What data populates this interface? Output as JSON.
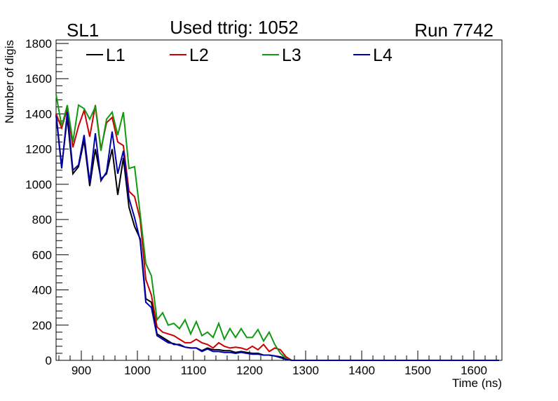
{
  "chart_data": {
    "type": "line",
    "title_left": "SL1",
    "title": "Used ttrig: 1052",
    "title_right": "Run 7742",
    "xlabel": "Time (ns)",
    "ylabel": "Number of digis",
    "xlim": [
      855,
      1650
    ],
    "ylim": [
      0,
      1820
    ],
    "x_ticks": [
      900,
      1000,
      1100,
      1200,
      1300,
      1400,
      1500,
      1600,
      1700
    ],
    "y_ticks": [
      0,
      200,
      400,
      600,
      800,
      1000,
      1200,
      1400,
      1600,
      1800
    ],
    "x_tick_labels": [
      "900",
      "1000",
      "1100",
      "1200",
      "1300",
      "1400",
      "1500",
      "1600"
    ],
    "y_tick_labels": [
      "0",
      "200",
      "400",
      "600",
      "800",
      "1000",
      "1200",
      "1400",
      "1600",
      "1800"
    ],
    "grid": false,
    "legend_position": "top",
    "x": [
      855,
      865,
      875,
      885,
      895,
      905,
      915,
      925,
      935,
      945,
      955,
      965,
      975,
      985,
      995,
      1005,
      1015,
      1025,
      1035,
      1045,
      1055,
      1065,
      1075,
      1085,
      1095,
      1105,
      1115,
      1125,
      1135,
      1145,
      1155,
      1165,
      1175,
      1185,
      1195,
      1205,
      1215,
      1225,
      1235,
      1245,
      1255,
      1265,
      1275,
      1285,
      1295,
      1305,
      1315,
      1325,
      1335,
      1345,
      1355,
      1365,
      1375,
      1385,
      1395,
      1405,
      1415,
      1425,
      1435,
      1445,
      1455,
      1465,
      1475,
      1485,
      1495,
      1505,
      1515,
      1525,
      1535,
      1545,
      1555,
      1565,
      1575,
      1585,
      1595,
      1605,
      1615,
      1625,
      1635,
      1645
    ],
    "series": [
      {
        "name": "L1",
        "color": "#000000",
        "values": [
          1400,
          1100,
          1380,
          1060,
          1100,
          1250,
          990,
          1200,
          1030,
          1060,
          1200,
          940,
          1150,
          870,
          760,
          690,
          350,
          330,
          150,
          130,
          110,
          90,
          90,
          75,
          70,
          70,
          55,
          70,
          60,
          60,
          55,
          55,
          45,
          50,
          45,
          40,
          40,
          30,
          30,
          25,
          20,
          10,
          0,
          0,
          0,
          0,
          0,
          0,
          0,
          0,
          0,
          0,
          0,
          0,
          0,
          0,
          0,
          0,
          0,
          0,
          0,
          0,
          0,
          0,
          0,
          0,
          0,
          0,
          0,
          0,
          0,
          0,
          0,
          0,
          0,
          0,
          0,
          0,
          0,
          0
        ]
      },
      {
        "name": "L2",
        "color": "#cc0000",
        "values": [
          1400,
          1320,
          1430,
          1210,
          1330,
          1420,
          1270,
          1450,
          1200,
          1350,
          1380,
          1240,
          1220,
          960,
          930,
          800,
          460,
          370,
          190,
          160,
          150,
          140,
          120,
          100,
          100,
          120,
          100,
          90,
          70,
          100,
          80,
          70,
          75,
          70,
          60,
          80,
          60,
          90,
          50,
          70,
          60,
          20,
          0,
          0,
          0,
          0,
          0,
          0,
          0,
          0,
          0,
          0,
          0,
          0,
          0,
          0,
          0,
          0,
          0,
          0,
          0,
          0,
          0,
          0,
          0,
          0,
          0,
          0,
          0,
          0,
          0,
          0,
          0,
          0,
          0,
          0,
          0,
          0,
          0,
          0
        ]
      },
      {
        "name": "L3",
        "color": "#119911",
        "values": [
          1510,
          1330,
          1450,
          1240,
          1450,
          1430,
          1370,
          1440,
          1190,
          1370,
          1410,
          1280,
          1410,
          1090,
          1100,
          830,
          550,
          480,
          230,
          270,
          200,
          210,
          180,
          230,
          150,
          220,
          140,
          160,
          130,
          210,
          120,
          180,
          130,
          180,
          130,
          130,
          175,
          110,
          160,
          90,
          40,
          10,
          0,
          0,
          0,
          0,
          0,
          0,
          0,
          0,
          0,
          0,
          0,
          0,
          0,
          0,
          0,
          0,
          0,
          0,
          0,
          0,
          0,
          0,
          0,
          0,
          0,
          0,
          0,
          0,
          0,
          0,
          0,
          0,
          0,
          0,
          0,
          0,
          0,
          0
        ]
      },
      {
        "name": "L4",
        "color": "#0000aa",
        "values": [
          1390,
          1090,
          1410,
          1080,
          1110,
          1280,
          1010,
          1290,
          1020,
          1070,
          1300,
          1060,
          1190,
          920,
          810,
          680,
          330,
          300,
          140,
          120,
          100,
          95,
          85,
          75,
          70,
          70,
          50,
          65,
          50,
          50,
          45,
          45,
          40,
          45,
          40,
          35,
          35,
          30,
          30,
          25,
          15,
          5,
          0,
          0,
          0,
          0,
          0,
          0,
          0,
          0,
          0,
          0,
          0,
          0,
          0,
          0,
          0,
          0,
          0,
          0,
          0,
          0,
          0,
          0,
          0,
          0,
          0,
          0,
          0,
          0,
          0,
          0,
          0,
          0,
          0,
          0,
          0,
          0,
          0,
          0
        ]
      }
    ]
  }
}
